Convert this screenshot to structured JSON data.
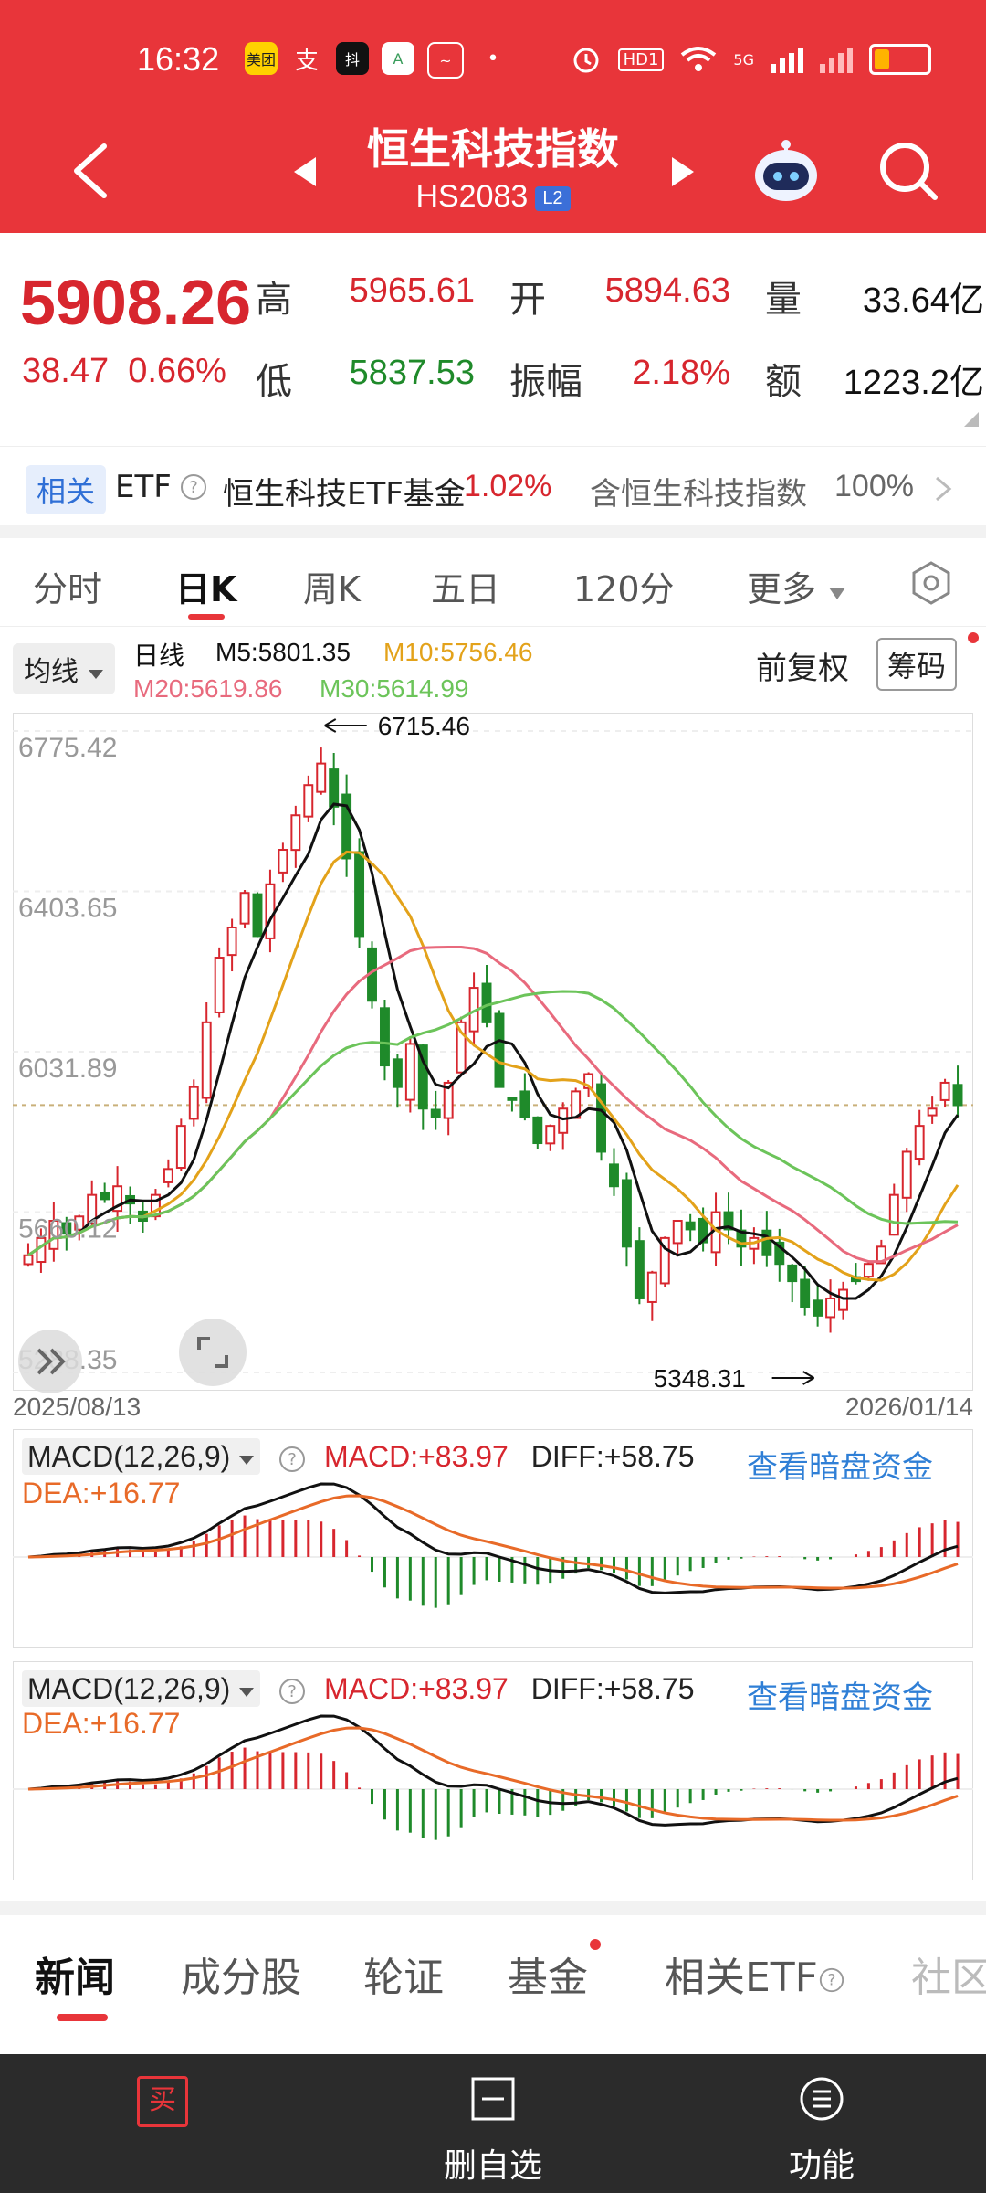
{
  "status_bar": {
    "time": "16:32",
    "app_icons": [
      "美团",
      "支",
      "抖",
      "A",
      "~",
      "•"
    ],
    "network": "5G",
    "hd": "HD1"
  },
  "header": {
    "title": "恒生科技指数",
    "code": "HS2083",
    "level_badge": "L2"
  },
  "quote": {
    "price": "5908.26",
    "change": "38.47",
    "change_pct": "0.66%",
    "high_label": "高",
    "high": "5965.61",
    "low_label": "低",
    "low": "5837.53",
    "open_label": "开",
    "open": "5894.63",
    "amplitude_label": "振幅",
    "amplitude": "2.18%",
    "volume_label": "量",
    "volume": "33.64亿",
    "amount_label": "额",
    "amount": "1223.2亿"
  },
  "etf": {
    "tag": "相关",
    "etf_label": "ETF",
    "fund_name": "恒生科技ETF基金",
    "fund_change": "1.02%",
    "contains_label": "含恒生科技指数",
    "contains_pct": "100%"
  },
  "period_tabs": [
    "分时",
    "日K",
    "周K",
    "五日",
    "120分",
    "更多"
  ],
  "ma": {
    "selector": "均线",
    "daily": "日线",
    "m5": "M5:5801.35",
    "m10": "M10:5756.46",
    "m20": "M20:5619.86",
    "m30": "M30:5614.99",
    "adjust": "前复权",
    "chips": "筹码"
  },
  "chart_data": {
    "type": "candlestick",
    "y_ticks": [
      "6775.42",
      "6403.65",
      "6031.89",
      "5660.12",
      "5288.35"
    ],
    "x_start": "2025/08/13",
    "x_end": "2026/01/14",
    "high_annotation": "6715.46",
    "low_annotation": "5348.31",
    "colors": {
      "up": "#d7262e",
      "down": "#1f8a2a",
      "m5": "#111111",
      "m10": "#e3a21a",
      "m20": "#e86a7d",
      "m30": "#6cc45a"
    },
    "close_series": [
      5560,
      5600,
      5640,
      5610,
      5650,
      5700,
      5690,
      5720,
      5680,
      5640,
      5700,
      5760,
      5860,
      5950,
      6100,
      6250,
      6320,
      6400,
      6300,
      6420,
      6500,
      6580,
      6650,
      6700,
      6600,
      6480,
      6300,
      6150,
      6000,
      5950,
      6050,
      5900,
      5880,
      5960,
      6100,
      6180,
      6100,
      5950,
      5920,
      5880,
      5820,
      5860,
      5900,
      5940,
      5980,
      5800,
      5720,
      5580,
      5460,
      5520,
      5600,
      5640,
      5620,
      5590,
      5660,
      5620,
      5580,
      5600,
      5560,
      5540,
      5500,
      5440,
      5420,
      5460,
      5480,
      5500,
      5540,
      5580,
      5700,
      5800,
      5860,
      5900,
      5960,
      5908
    ]
  },
  "macd": {
    "label": "MACD(12,26,9)",
    "macd": "MACD:+83.97",
    "diff": "DIFF:+58.75",
    "dea": "DEA:+16.77",
    "link": "查看暗盘资金"
  },
  "news_tabs": [
    "新闻",
    "成分股",
    "轮证",
    "基金",
    "相关ETF",
    "社区"
  ],
  "bottom_bar": {
    "buy": "买",
    "watchlist": "删自选",
    "functions": "功能"
  }
}
